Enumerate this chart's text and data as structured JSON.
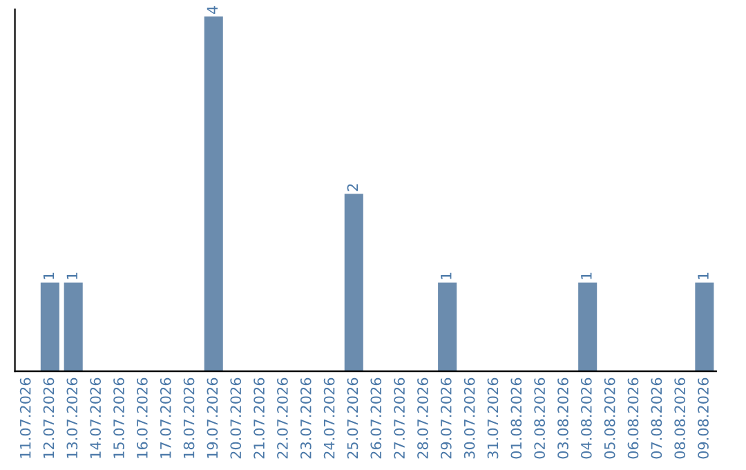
{
  "chart_data": {
    "type": "bar",
    "categories": [
      "11.07.2026",
      "12.07.2026",
      "13.07.2026",
      "14.07.2026",
      "15.07.2026",
      "16.07.2026",
      "17.07.2026",
      "18.07.2026",
      "19.07.2026",
      "20.07.2026",
      "21.07.2026",
      "22.07.2026",
      "23.07.2026",
      "24.07.2026",
      "25.07.2026",
      "26.07.2026",
      "27.07.2026",
      "28.07.2026",
      "29.07.2026",
      "30.07.2026",
      "31.07.2026",
      "01.08.2026",
      "02.08.2026",
      "03.08.2026",
      "04.08.2026",
      "05.08.2026",
      "06.08.2026",
      "07.08.2026",
      "08.08.2026",
      "09.08.2026"
    ],
    "values": [
      0,
      1,
      1,
      0,
      0,
      0,
      0,
      0,
      4,
      0,
      0,
      0,
      0,
      0,
      2,
      0,
      0,
      0,
      1,
      0,
      0,
      0,
      0,
      0,
      1,
      0,
      0,
      0,
      0,
      1
    ],
    "value_labels": [
      null,
      "1",
      "1",
      null,
      null,
      null,
      null,
      null,
      "4",
      null,
      null,
      null,
      null,
      null,
      "2",
      null,
      null,
      null,
      "1",
      null,
      null,
      null,
      null,
      null,
      "1",
      null,
      null,
      null,
      null,
      "1"
    ],
    "color": "#6b8cae",
    "tick_labels": "x",
    "grid": false,
    "legend": false
  }
}
